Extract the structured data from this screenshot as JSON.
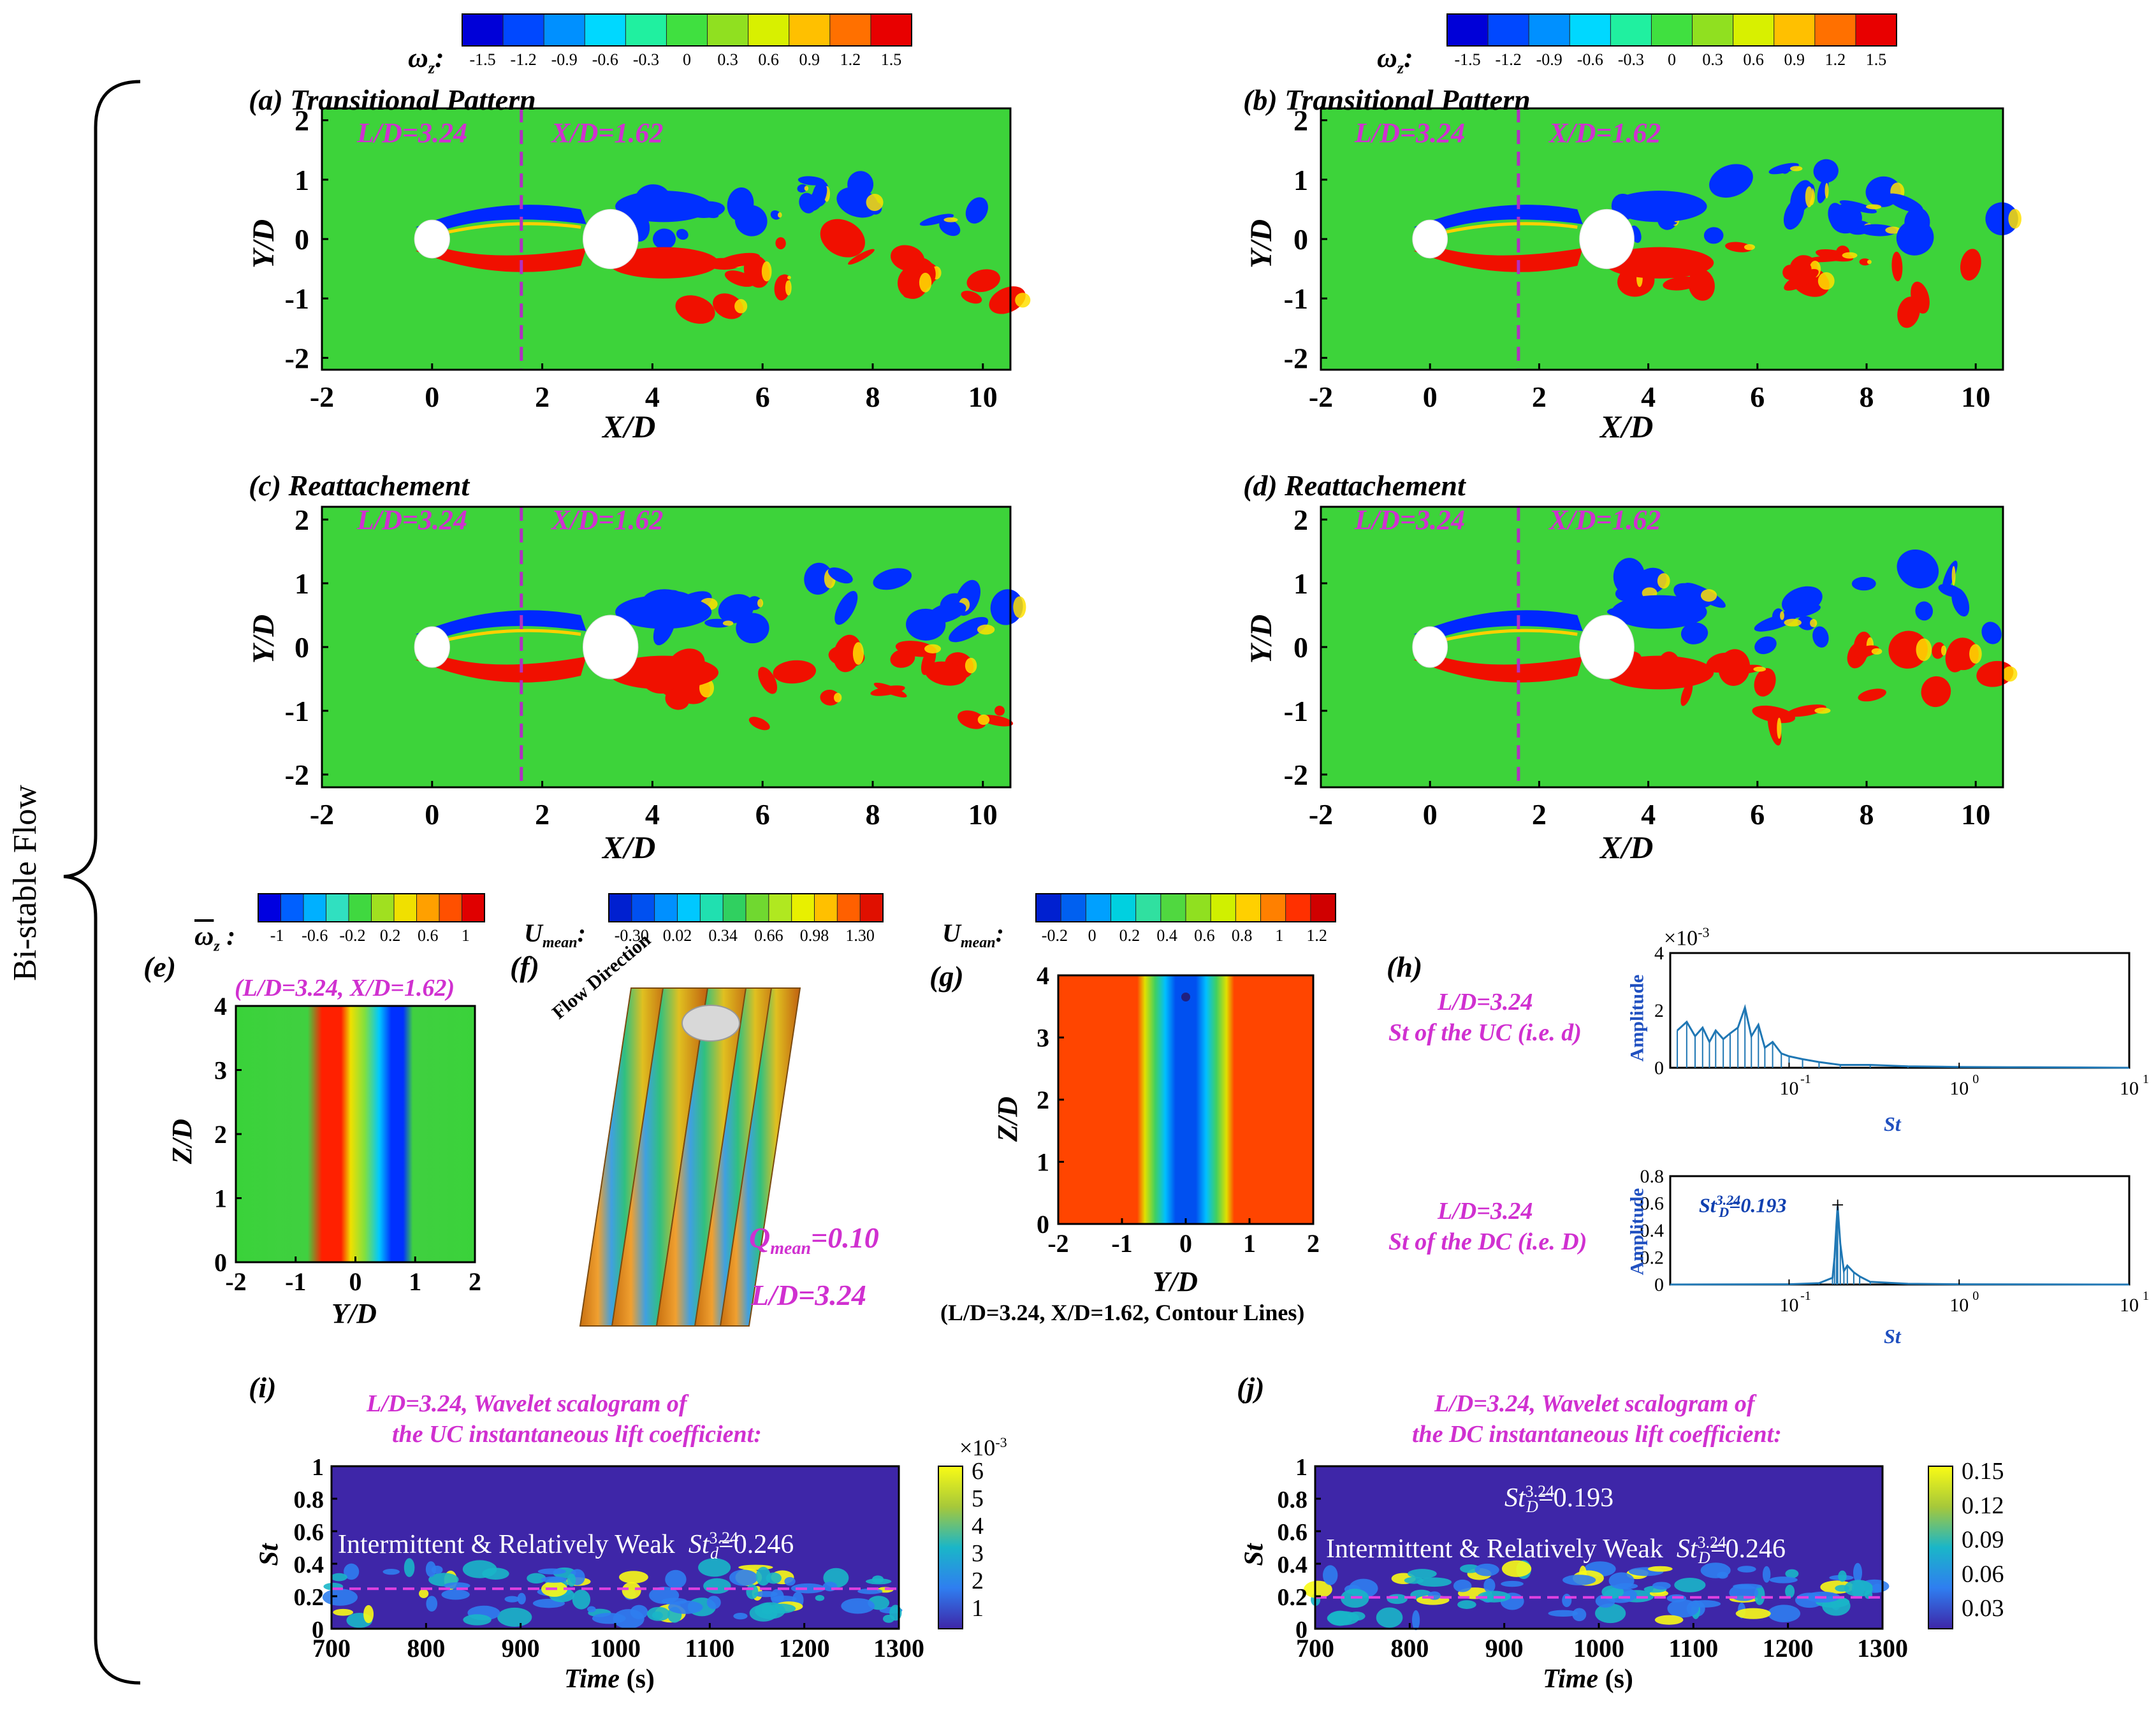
{
  "side_label": "Bi-stable Flow",
  "colorbar_omega": {
    "symbol": "ω",
    "sub": "z",
    "ticks": [
      "-1.5",
      "-1.2",
      "-0.9",
      "-0.6",
      "-0.3",
      "0",
      "0.3",
      "0.6",
      "0.9",
      "1.2",
      "1.5"
    ]
  },
  "colorbar_omega_mean": {
    "symbol": "ω",
    "sub": "z",
    "ticks": [
      "-1",
      "-0.6",
      "-0.2",
      "0.2",
      "0.6",
      "1"
    ]
  },
  "colorbar_umean_f": {
    "symbol": "U",
    "sub": "mean",
    "ticks": [
      "-0.30",
      "0.02",
      "0.34",
      "0.66",
      "0.98",
      "1.30"
    ]
  },
  "colorbar_umean_g": {
    "symbol": "U",
    "sub": "mean",
    "ticks": [
      "-0.2",
      "0",
      "0.2",
      "0.4",
      "0.6",
      "0.8",
      "1",
      "1.2"
    ]
  },
  "panels_top": [
    {
      "id": "a",
      "title": "(a) Transitional Pattern",
      "ld": "L/D=3.24",
      "xd": "X/D=1.62"
    },
    {
      "id": "b",
      "title": "(b) Transitional Pattern",
      "ld": "L/D=3.24",
      "xd": "X/D=1.62"
    },
    {
      "id": "c",
      "title": "(c) Reattachement",
      "ld": "L/D=3.24",
      "xd": "X/D=1.62"
    },
    {
      "id": "d",
      "title": "(d) Reattachement",
      "ld": "L/D=3.24",
      "xd": "X/D=1.62"
    }
  ],
  "axis_wake": {
    "xlabel": "X/D",
    "ylabel": "Y/D",
    "xticks": [
      "-2",
      "0",
      "2",
      "4",
      "6",
      "8",
      "10"
    ],
    "yticks": [
      "2",
      "1",
      "0",
      "-1",
      "-2"
    ]
  },
  "panel_e": {
    "label": "(e)",
    "caption": "(L/D=3.24, X/D=1.62)",
    "xlabel": "Y/D",
    "ylabel": "Z/D",
    "xticks": [
      "-2",
      "-1",
      "0",
      "1",
      "2"
    ],
    "yticks": [
      "4",
      "3",
      "2",
      "1",
      "0"
    ]
  },
  "panel_f": {
    "label": "(f)",
    "flow": "Flow Direction",
    "q_sym": "Q",
    "q_sub": "mean",
    "q_val": "=0.10",
    "ld": "L/D=3.24"
  },
  "panel_g": {
    "label": "(g)",
    "xlabel": "Y/D",
    "ylabel": "Z/D",
    "caption": "(L/D=3.24, X/D=1.62, Contour Lines)",
    "xticks": [
      "-2",
      "-1",
      "0",
      "1",
      "2"
    ],
    "yticks": [
      "4",
      "3",
      "2",
      "1",
      "0"
    ]
  },
  "panel_h": {
    "label": "(h)",
    "top_l1": "L/D=3.24",
    "top_l2": "St of the UC (i.e. d)",
    "bot_l1": "L/D=3.24",
    "bot_l2": "St of the DC (i.e. D)",
    "ylabel": "Amplitude",
    "xlabel": "St",
    "exp": "×10",
    "exp_pow": "-3",
    "top_yticks": [
      "4",
      "2",
      "0"
    ],
    "bot_yticks": [
      "0.8",
      "0.6",
      "0.4",
      "0.2",
      "0"
    ],
    "peak_label": "St",
    "peak_sub": "D",
    "peak_sup": "3.24",
    "peak_val": "=0.193"
  },
  "panel_i": {
    "label": "(i)",
    "title1": "L/D=3.24, Wavelet scalogram of",
    "title2": "the UC instantaneous lift coefficient:",
    "note": "Intermittent & Relatively Weak",
    "st_sym": "St",
    "st_sub": "d",
    "st_sup": "3.24",
    "st_val": "=0.246",
    "cbar_exp": "×10",
    "cbar_pow": "-3",
    "cbar_ticks": [
      "6",
      "5",
      "4",
      "3",
      "2",
      "1"
    ]
  },
  "panel_j": {
    "label": "(j)",
    "title1": "L/D=3.24, Wavelet scalogram of",
    "title2": "the DC instantaneous lift coefficient:",
    "note": "Intermittent & Relatively Weak",
    "st1_val": "=0.193",
    "st2_val": "=0.246",
    "st_sym": "St",
    "st_sub": "D",
    "st_sup": "3.24",
    "cbar_ticks": [
      "0.15",
      "0.12",
      "0.09",
      "0.06",
      "0.03"
    ]
  },
  "axis_wavelet": {
    "xlabel": "Time",
    "xunit": " (s)",
    "ylabel": "St",
    "xticks": [
      "700",
      "800",
      "900",
      "1000",
      "1100",
      "1200",
      "1300"
    ],
    "yticks": [
      "1",
      "0.8",
      "0.6",
      "0.4",
      "0.2",
      "0"
    ]
  },
  "chart_data": [
    {
      "type": "heatmap",
      "title": "(a) Transitional Pattern",
      "xlabel": "X/D",
      "ylabel": "Y/D",
      "xlim": [
        -2,
        10.5
      ],
      "ylim": [
        -2.2,
        2.2
      ],
      "colorbar": [
        -1.5,
        1.5
      ],
      "cylinders": [
        {
          "x": 0,
          "y": 0,
          "d": 1
        },
        {
          "x": 3.24,
          "y": 0,
          "d": 1
        }
      ]
    },
    {
      "type": "heatmap",
      "title": "(b) Transitional Pattern",
      "xlabel": "X/D",
      "ylabel": "Y/D",
      "xlim": [
        -2,
        10.5
      ],
      "ylim": [
        -2.2,
        2.2
      ],
      "colorbar": [
        -1.5,
        1.5
      ]
    },
    {
      "type": "heatmap",
      "title": "(c) Reattachement",
      "xlabel": "X/D",
      "ylabel": "Y/D",
      "xlim": [
        -2,
        10.5
      ],
      "ylim": [
        -2.2,
        2.2
      ],
      "colorbar": [
        -1.5,
        1.5
      ]
    },
    {
      "type": "heatmap",
      "title": "(d) Reattachement",
      "xlabel": "X/D",
      "ylabel": "Y/D",
      "xlim": [
        -2,
        10.5
      ],
      "ylim": [
        -2.2,
        2.2
      ],
      "colorbar": [
        -1.5,
        1.5
      ]
    },
    {
      "type": "heatmap",
      "title": "(e)",
      "xlabel": "Y/D",
      "ylabel": "Z/D",
      "xlim": [
        -2,
        2
      ],
      "ylim": [
        0,
        4
      ],
      "colorbar": [
        -1,
        1
      ]
    },
    {
      "type": "heatmap",
      "title": "(g)",
      "xlabel": "Y/D",
      "ylabel": "Z/D",
      "xlim": [
        -2,
        2
      ],
      "ylim": [
        0,
        4
      ],
      "colorbar": [
        -0.2,
        1.2
      ]
    },
    {
      "type": "line",
      "title": "(h) St of the UC",
      "xlabel": "St",
      "ylabel": "Amplitude",
      "xscale": "log",
      "xlim": [
        0.02,
        10
      ],
      "ylim": [
        0,
        0.004
      ],
      "x": [
        0.022,
        0.025,
        0.028,
        0.031,
        0.034,
        0.037,
        0.041,
        0.045,
        0.05,
        0.055,
        0.06,
        0.066,
        0.072,
        0.08,
        0.09,
        0.1,
        0.12,
        0.15,
        0.2,
        0.3,
        0.5,
        1,
        2,
        5,
        10
      ],
      "y": [
        0.0013,
        0.0016,
        0.0011,
        0.0014,
        0.0009,
        0.0013,
        0.001,
        0.0012,
        0.0014,
        0.0021,
        0.0011,
        0.0015,
        0.0007,
        0.0009,
        0.0005,
        0.0004,
        0.0003,
        0.0002,
        0.0001,
        0.0001,
        5e-05,
        3e-05,
        2e-05,
        1e-05,
        0
      ]
    },
    {
      "type": "line",
      "title": "(h) St of the DC",
      "xlabel": "St",
      "ylabel": "Amplitude",
      "xscale": "log",
      "xlim": [
        0.02,
        10
      ],
      "ylim": [
        0,
        0.8
      ],
      "x": [
        0.02,
        0.1,
        0.15,
        0.18,
        0.185,
        0.19,
        0.193,
        0.2,
        0.21,
        0.22,
        0.24,
        0.26,
        0.3,
        0.5,
        1,
        10
      ],
      "y": [
        0,
        0.002,
        0.01,
        0.05,
        0.2,
        0.45,
        0.58,
        0.3,
        0.1,
        0.14,
        0.09,
        0.06,
        0.02,
        0.005,
        0.002,
        0
      ],
      "peak": {
        "x": 0.193,
        "y": 0.58
      }
    },
    {
      "type": "heatmap",
      "title": "(i) Wavelet scalogram UC",
      "xlabel": "Time (s)",
      "ylabel": "St",
      "xlim": [
        700,
        1300
      ],
      "ylim": [
        0,
        1
      ],
      "colorbar": [
        0,
        0.006
      ],
      "dominant_st": 0.246
    },
    {
      "type": "heatmap",
      "title": "(j) Wavelet scalogram DC",
      "xlabel": "Time (s)",
      "ylabel": "St",
      "xlim": [
        700,
        1300
      ],
      "ylim": [
        0,
        1
      ],
      "colorbar": [
        0,
        0.15
      ],
      "dominant_st": [
        0.193,
        0.246
      ]
    }
  ]
}
